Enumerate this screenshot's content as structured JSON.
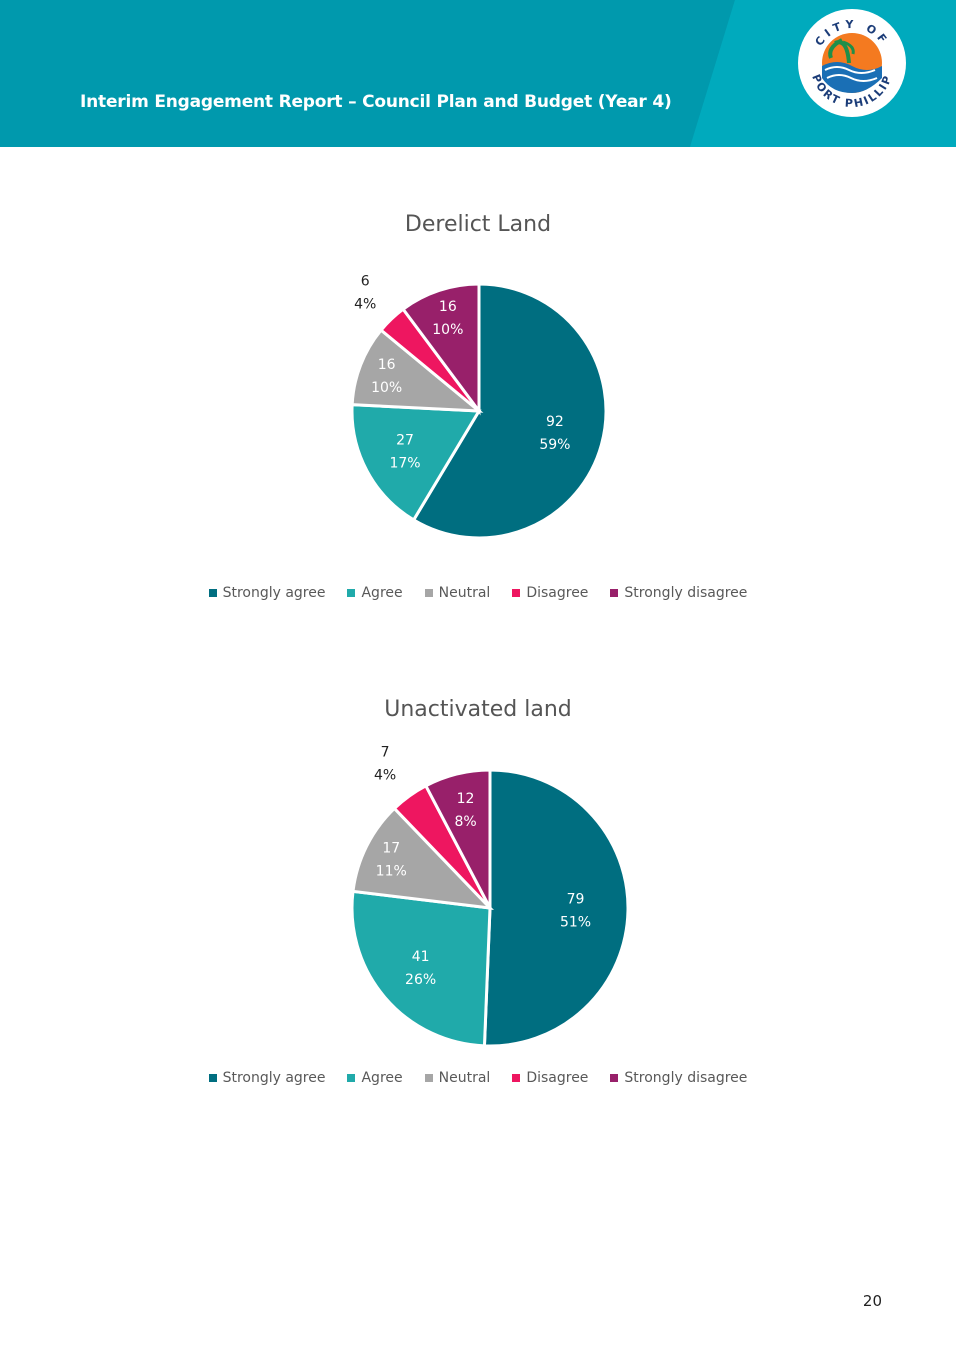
{
  "header": {
    "title": "Interim Engagement Report – Council Plan and Budget (Year 4)",
    "logo": {
      "top_text": "CITY OF",
      "bottom_text": "PORT PHILLIP"
    },
    "colors": {
      "banner": "#00a0b6",
      "banner_dark": "#0095aa"
    }
  },
  "legend_labels": [
    "Strongly agree",
    "Agree",
    "Neutral",
    "Disagree",
    "Strongly disagree"
  ],
  "colors": [
    "#006e80",
    "#20aaaa",
    "#a6a6a6",
    "#ee1660",
    "#98206a"
  ],
  "chart_data": [
    {
      "type": "pie",
      "title": "Derelict Land",
      "categories": [
        "Strongly agree",
        "Agree",
        "Neutral",
        "Disagree",
        "Strongly disagree"
      ],
      "values": [
        92,
        27,
        16,
        6,
        16
      ],
      "labels": [
        "92\n59%",
        "27\n17%",
        "16\n10%",
        "6\n4%",
        "16\n10%"
      ],
      "legend_position": "bottom"
    },
    {
      "type": "pie",
      "title": "Unactivated land",
      "categories": [
        "Strongly agree",
        "Agree",
        "Neutral",
        "Disagree",
        "Strongly disagree"
      ],
      "values": [
        79,
        41,
        17,
        7,
        12
      ],
      "labels": [
        "79\n51%",
        "41\n26%",
        "17\n11%",
        "7\n4%",
        "12\n8%"
      ],
      "legend_position": "bottom"
    }
  ],
  "page_number": "20"
}
